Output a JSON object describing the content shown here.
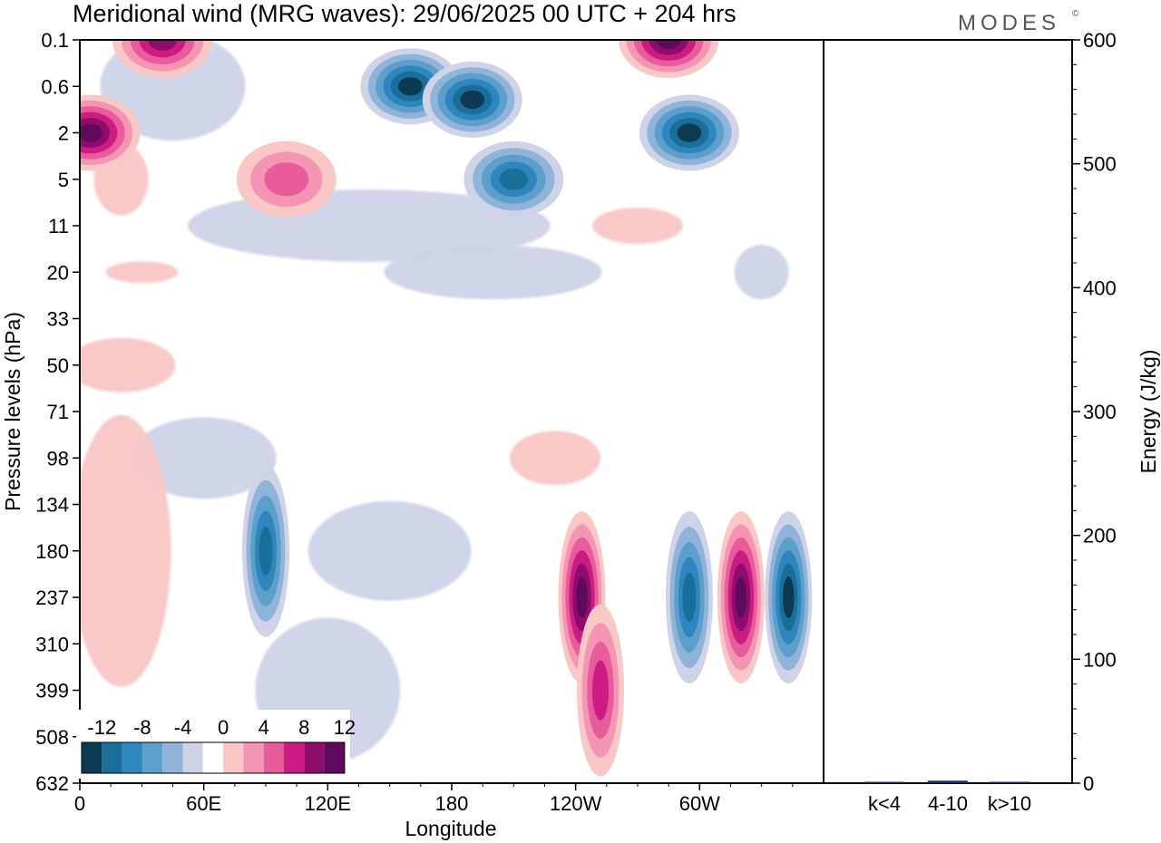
{
  "title": "Meridional wind (MRG waves):  29/06/2025  00 UTC  + 204 hrs",
  "logo": "MODES",
  "logo_mark": "©",
  "chart_data": [
    {
      "type": "heatmap",
      "title": "Meridional wind (MRG waves):  29/06/2025  00 UTC  + 204 hrs",
      "xlabel": "Longitude",
      "ylabel": "Pressure levels (hPa)",
      "x_ticks": [
        "0",
        "60E",
        "120E",
        "180",
        "120W",
        "60W"
      ],
      "x_tick_degrees": [
        0,
        60,
        120,
        180,
        240,
        300
      ],
      "xlim": [
        0,
        360
      ],
      "y_ticks": [
        "0.1",
        "0.6",
        "2",
        "5",
        "11",
        "20",
        "33",
        "50",
        "71",
        "98",
        "134",
        "180",
        "237",
        "310",
        "399",
        "508",
        "632"
      ],
      "y_scale": "model levels (equally spaced labels)",
      "colorbar": {
        "tick_labels": [
          "-12",
          "-8",
          "-4",
          "0",
          "4",
          "8",
          "12"
        ],
        "levels": [
          -14,
          -12,
          -10,
          -8,
          -6,
          -4,
          -2,
          2,
          4,
          6,
          8,
          10,
          12,
          14
        ],
        "colors": [
          "#0b3a52",
          "#1a6e9a",
          "#2e86be",
          "#5c9fcb",
          "#8fb3d9",
          "#cfd3e8",
          "#ffffff",
          "#f9c7c6",
          "#f595b4",
          "#e85c9c",
          "#cc1c84",
          "#8e0d6c",
          "#5e0a5e"
        ],
        "placement": "bottom-left inset"
      },
      "features": [
        {
          "lon": 5,
          "level": "2",
          "value": 14
        },
        {
          "lon": 40,
          "level": "0.1",
          "value": 10
        },
        {
          "lon": 160,
          "level": "0.6",
          "value": -14
        },
        {
          "lon": 190,
          "level": "1",
          "value": -14
        },
        {
          "lon": 285,
          "level": "0.1",
          "value": 14
        },
        {
          "lon": 295,
          "level": "2",
          "value": -14
        },
        {
          "lon": 210,
          "level": "5",
          "value": -10
        },
        {
          "lon": 100,
          "level": "5",
          "value": 6
        },
        {
          "lon": 90,
          "level": "180",
          "value": -10
        },
        {
          "lon": 243,
          "level": "237",
          "value": 14
        },
        {
          "lon": 320,
          "level": "237",
          "value": 14
        },
        {
          "lon": 295,
          "level": "237",
          "value": -10
        },
        {
          "lon": 343,
          "level": "237",
          "value": -12
        },
        {
          "lon": 252,
          "level": "399",
          "value": 8
        }
      ]
    },
    {
      "type": "bar",
      "ylabel": "Energy (J/kg)",
      "ylim": [
        0,
        600
      ],
      "y_ticks": [
        0,
        100,
        200,
        300,
        400,
        500,
        600
      ],
      "categories": [
        "k<4",
        "4-10",
        "k>10"
      ],
      "values": [
        0.5,
        2,
        0.5
      ],
      "bar_color": "#1a2a6e"
    }
  ]
}
